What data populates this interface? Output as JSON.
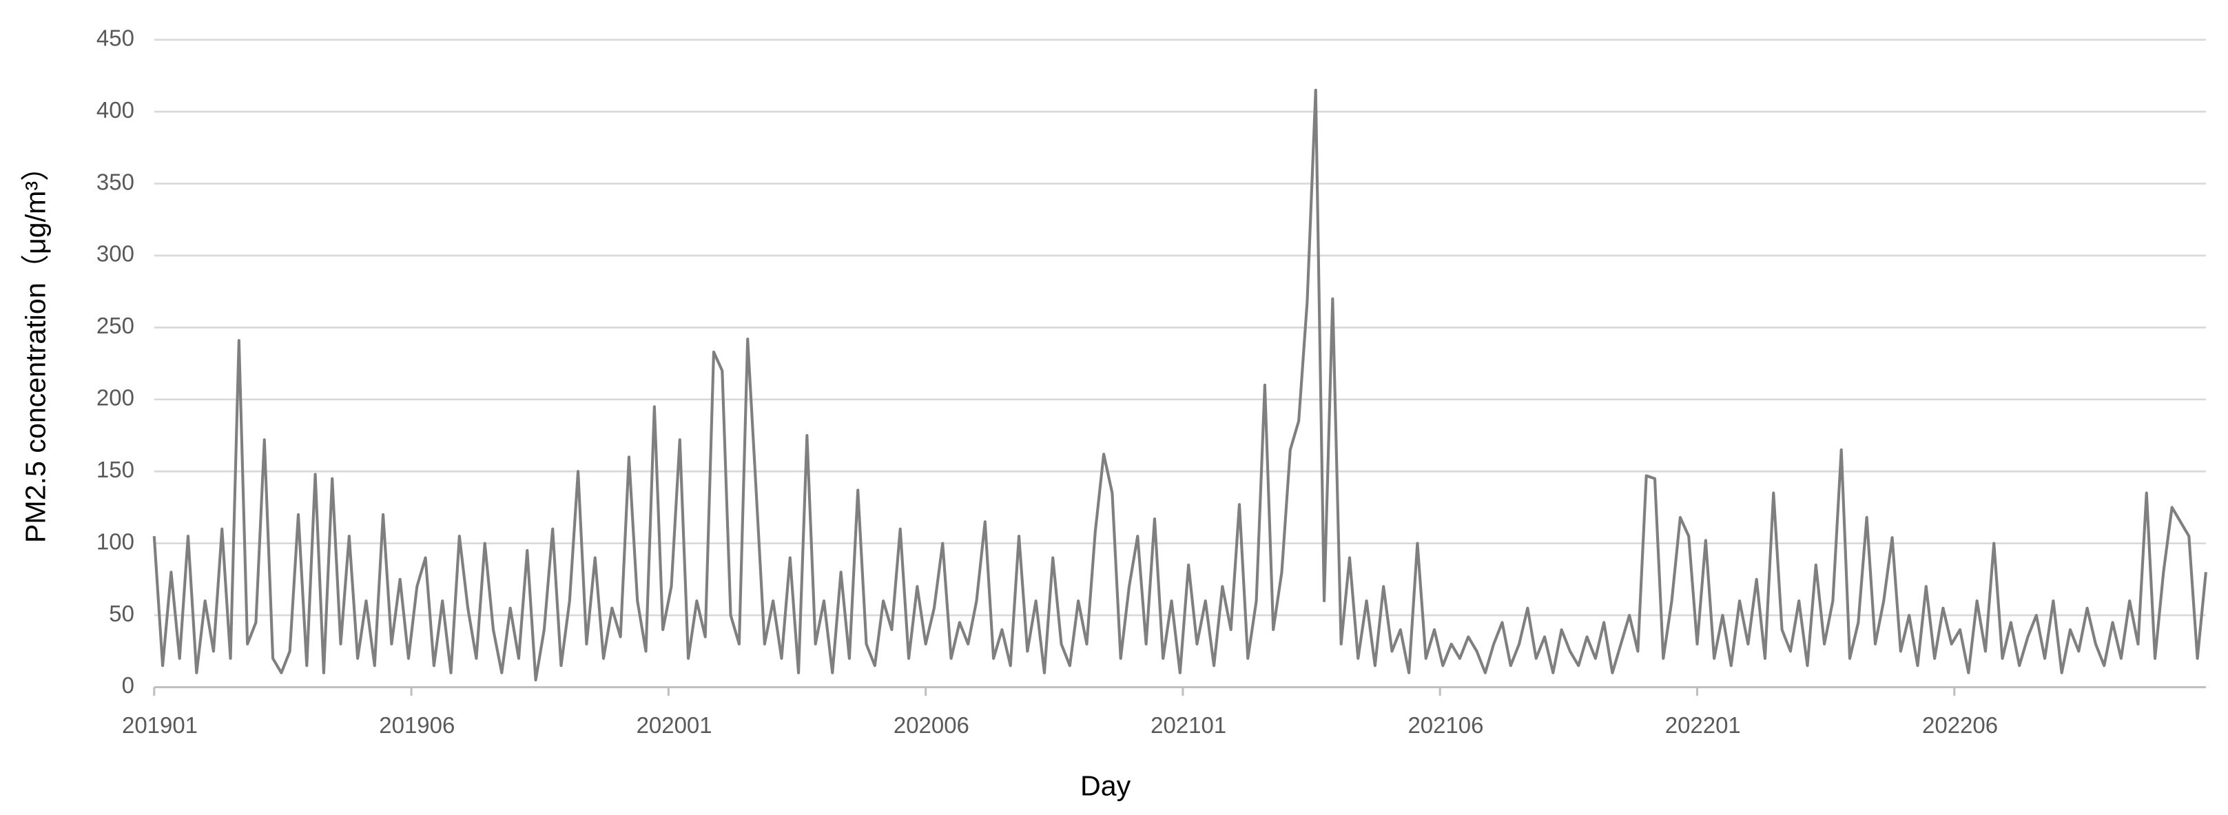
{
  "chart_data": {
    "type": "line",
    "x_label": "Day",
    "y_label": "PM2.5 concentration（μg/m³）",
    "color": "#7f7f7f",
    "grid": true,
    "ylim": [
      0,
      450
    ],
    "yticks": [
      0,
      50,
      100,
      150,
      200,
      250,
      300,
      350,
      400,
      450
    ],
    "xlim": [
      0,
      1452
    ],
    "xticks": [
      {
        "value": 0,
        "label": "201901"
      },
      {
        "value": 182,
        "label": "201906"
      },
      {
        "value": 364,
        "label": "202001"
      },
      {
        "value": 546,
        "label": "202006"
      },
      {
        "value": 728,
        "label": "202101"
      },
      {
        "value": 910,
        "label": "202106"
      },
      {
        "value": 1092,
        "label": "202201"
      },
      {
        "value": 1274,
        "label": "202206"
      }
    ],
    "x": [
      0,
      6,
      12,
      18,
      24,
      30,
      36,
      42,
      48,
      54,
      60,
      66,
      72,
      78,
      84,
      90,
      96,
      102,
      108,
      114,
      120,
      126,
      132,
      138,
      144,
      150,
      156,
      162,
      168,
      174,
      180,
      186,
      192,
      198,
      204,
      210,
      216,
      222,
      228,
      234,
      240,
      246,
      252,
      258,
      264,
      270,
      276,
      282,
      288,
      294,
      300,
      306,
      312,
      318,
      324,
      330,
      336,
      342,
      348,
      354,
      360,
      366,
      372,
      378,
      384,
      390,
      396,
      402,
      408,
      414,
      420,
      426,
      432,
      438,
      444,
      450,
      456,
      462,
      468,
      474,
      480,
      486,
      492,
      498,
      504,
      510,
      516,
      522,
      528,
      534,
      540,
      546,
      552,
      558,
      564,
      570,
      576,
      582,
      588,
      594,
      600,
      606,
      612,
      618,
      624,
      630,
      636,
      642,
      648,
      654,
      660,
      666,
      672,
      678,
      684,
      690,
      696,
      702,
      708,
      714,
      720,
      726,
      732,
      738,
      744,
      750,
      756,
      762,
      768,
      774,
      780,
      786,
      792,
      798,
      804,
      810,
      816,
      822,
      828,
      834,
      840,
      846,
      852,
      858,
      864,
      870,
      876,
      882,
      888,
      894,
      900,
      906,
      912,
      918,
      924,
      930,
      936,
      942,
      948,
      954,
      960,
      966,
      972,
      978,
      984,
      990,
      996,
      1002,
      1008,
      1014,
      1020,
      1026,
      1032,
      1038,
      1044,
      1050,
      1056,
      1062,
      1068,
      1074,
      1080,
      1086,
      1092,
      1098,
      1104,
      1110,
      1116,
      1122,
      1128,
      1134,
      1140,
      1146,
      1152,
      1158,
      1164,
      1170,
      1176,
      1182,
      1188,
      1194,
      1200,
      1206,
      1212,
      1218,
      1224,
      1230,
      1236,
      1242,
      1248,
      1254,
      1260,
      1266,
      1272,
      1278,
      1284,
      1290,
      1296,
      1302,
      1308,
      1314,
      1320,
      1326,
      1332,
      1338,
      1344,
      1350,
      1356,
      1362,
      1368,
      1374,
      1380,
      1386,
      1392,
      1398,
      1404,
      1410,
      1416,
      1422,
      1428,
      1434,
      1440,
      1446,
      1452
    ],
    "values": [
      105,
      15,
      80,
      20,
      105,
      10,
      60,
      25,
      110,
      20,
      241,
      30,
      45,
      172,
      20,
      10,
      25,
      120,
      15,
      148,
      10,
      145,
      30,
      105,
      20,
      60,
      15,
      120,
      30,
      75,
      20,
      70,
      90,
      15,
      60,
      10,
      105,
      55,
      20,
      100,
      40,
      10,
      55,
      20,
      95,
      5,
      40,
      110,
      15,
      60,
      150,
      30,
      90,
      20,
      55,
      35,
      160,
      60,
      25,
      195,
      40,
      70,
      172,
      20,
      60,
      35,
      233,
      220,
      50,
      30,
      242,
      137,
      30,
      60,
      20,
      90,
      10,
      175,
      30,
      60,
      10,
      80,
      20,
      137,
      30,
      15,
      60,
      40,
      110,
      20,
      70,
      30,
      55,
      100,
      20,
      45,
      30,
      60,
      115,
      20,
      40,
      15,
      105,
      25,
      60,
      10,
      90,
      30,
      15,
      60,
      30,
      108,
      162,
      135,
      20,
      70,
      105,
      30,
      117,
      20,
      60,
      10,
      85,
      30,
      60,
      15,
      70,
      40,
      127,
      20,
      60,
      210,
      40,
      80,
      165,
      185,
      268,
      415,
      60,
      270,
      30,
      90,
      20,
      60,
      15,
      70,
      25,
      40,
      10,
      100,
      20,
      40,
      15,
      30,
      20,
      35,
      25,
      10,
      30,
      45,
      15,
      30,
      55,
      20,
      35,
      10,
      40,
      25,
      15,
      35,
      20,
      45,
      10,
      30,
      50,
      25,
      147,
      145,
      20,
      60,
      118,
      105,
      30,
      102,
      20,
      50,
      15,
      60,
      30,
      75,
      20,
      135,
      40,
      25,
      60,
      15,
      85,
      30,
      60,
      165,
      20,
      45,
      118,
      30,
      60,
      104,
      25,
      50,
      15,
      70,
      20,
      55,
      30,
      40,
      10,
      60,
      25,
      100,
      20,
      45,
      15,
      35,
      50,
      20,
      60,
      10,
      40,
      25,
      55,
      30,
      15,
      45,
      20,
      60,
      30,
      135,
      20,
      80,
      125,
      115,
      105,
      20,
      80
    ]
  }
}
